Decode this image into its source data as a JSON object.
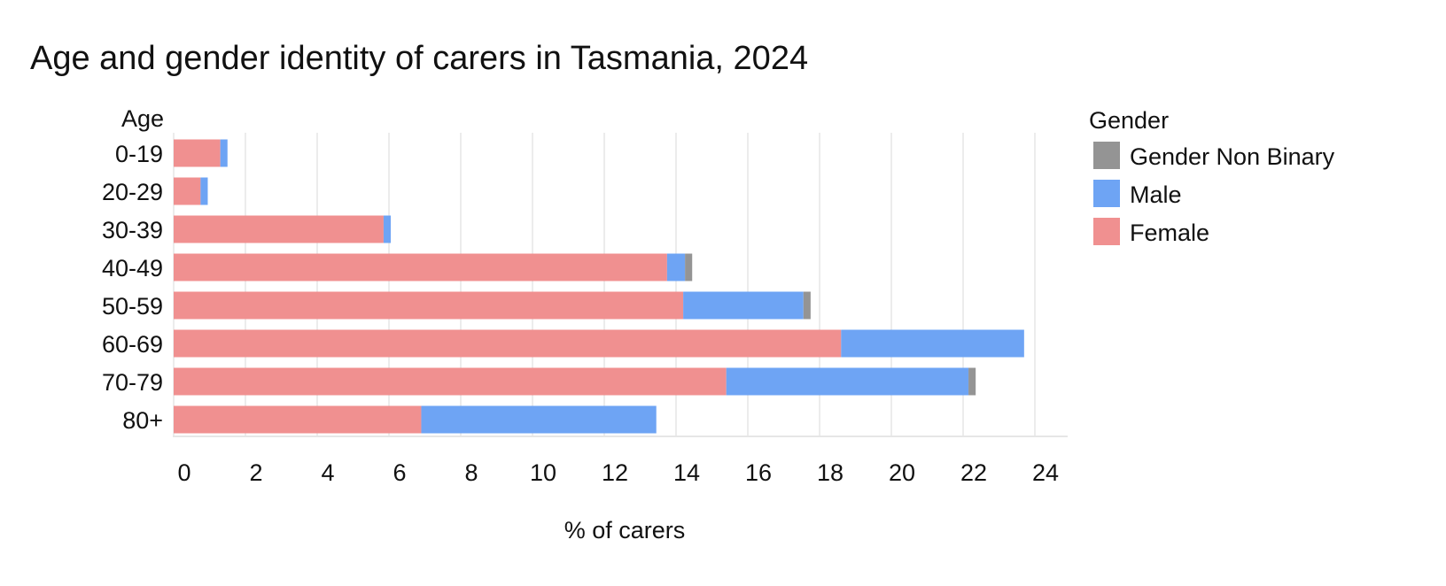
{
  "chart_data": {
    "type": "bar",
    "orientation": "horizontal",
    "stacked": true,
    "title": "Age and gender identity of carers in Tasmania, 2024",
    "xlabel": "% of carers",
    "ylabel": "Age",
    "categories": [
      "0-19",
      "20-29",
      "30-39",
      "40-49",
      "50-59",
      "60-69",
      "70-79",
      "80+"
    ],
    "xlim": [
      0,
      25
    ],
    "xticks": [
      0,
      2,
      4,
      6,
      8,
      10,
      12,
      14,
      16,
      18,
      20,
      22,
      24
    ],
    "grid": true,
    "legend": {
      "title": "Gender",
      "placement": "top-right"
    },
    "series": [
      {
        "name": "Female",
        "color": "#f09090",
        "values": [
          1.3,
          0.75,
          5.85,
          13.75,
          14.2,
          18.6,
          15.4,
          6.9
        ]
      },
      {
        "name": "Male",
        "color": "#6ea4f4",
        "values": [
          0.2,
          0.2,
          0.2,
          0.5,
          3.35,
          5.1,
          6.75,
          6.55
        ]
      },
      {
        "name": "Gender Non Binary",
        "color": "#949494",
        "values": [
          0,
          0,
          0,
          0.2,
          0.2,
          0,
          0.2,
          0
        ]
      }
    ],
    "legend_order": [
      "Gender Non Binary",
      "Male",
      "Female"
    ]
  }
}
